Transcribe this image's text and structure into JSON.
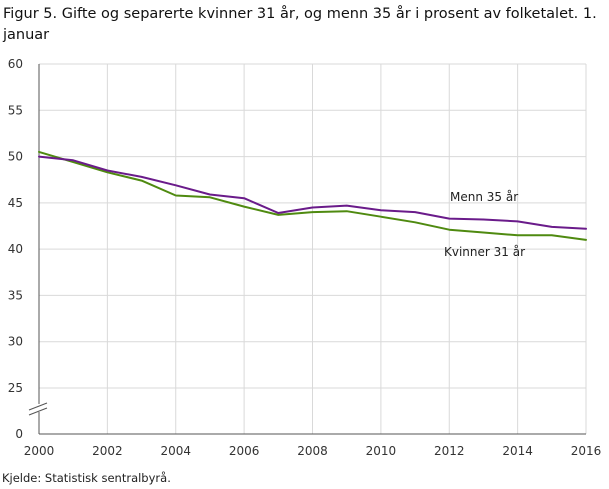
{
  "title": "Figur 5. Gifte og separerte kvinner 31 år, og menn 35 år i prosent av folketalet. 1. januar",
  "source": "Kjelde: Statistisk sentralbyrå.",
  "colors": {
    "menn": "#6a1b8a",
    "kvinner": "#4f8a10",
    "grid": "#d9d9d9"
  },
  "chart_data": {
    "type": "line",
    "title": "Figur 5. Gifte og separerte kvinner 31 år, og menn 35 år i prosent av folketalet. 1. januar",
    "xlabel": "",
    "ylabel": "",
    "x": [
      2000,
      2001,
      2002,
      2003,
      2004,
      2005,
      2006,
      2007,
      2008,
      2009,
      2010,
      2011,
      2012,
      2013,
      2014,
      2015,
      2016
    ],
    "xticks": [
      "2000",
      "2002",
      "2004",
      "2006",
      "2008",
      "2010",
      "2012",
      "2014",
      "2016"
    ],
    "yticks": [
      "0",
      "25",
      "30",
      "35",
      "40",
      "45",
      "50",
      "55",
      "60"
    ],
    "ylim": [
      0,
      60
    ],
    "y_axis_break": true,
    "grid": true,
    "series": [
      {
        "name": "Menn 35 år",
        "values": [
          50.0,
          49.6,
          48.5,
          47.8,
          46.9,
          45.9,
          45.5,
          43.9,
          44.5,
          44.7,
          44.2,
          44.0,
          43.3,
          43.2,
          43.0,
          42.4,
          42.2
        ]
      },
      {
        "name": "Kvinner 31 år",
        "values": [
          50.5,
          49.4,
          48.3,
          47.4,
          45.8,
          45.6,
          44.6,
          43.7,
          44.0,
          44.1,
          43.5,
          42.9,
          42.1,
          41.8,
          41.5,
          41.5,
          41.0
        ]
      }
    ]
  }
}
